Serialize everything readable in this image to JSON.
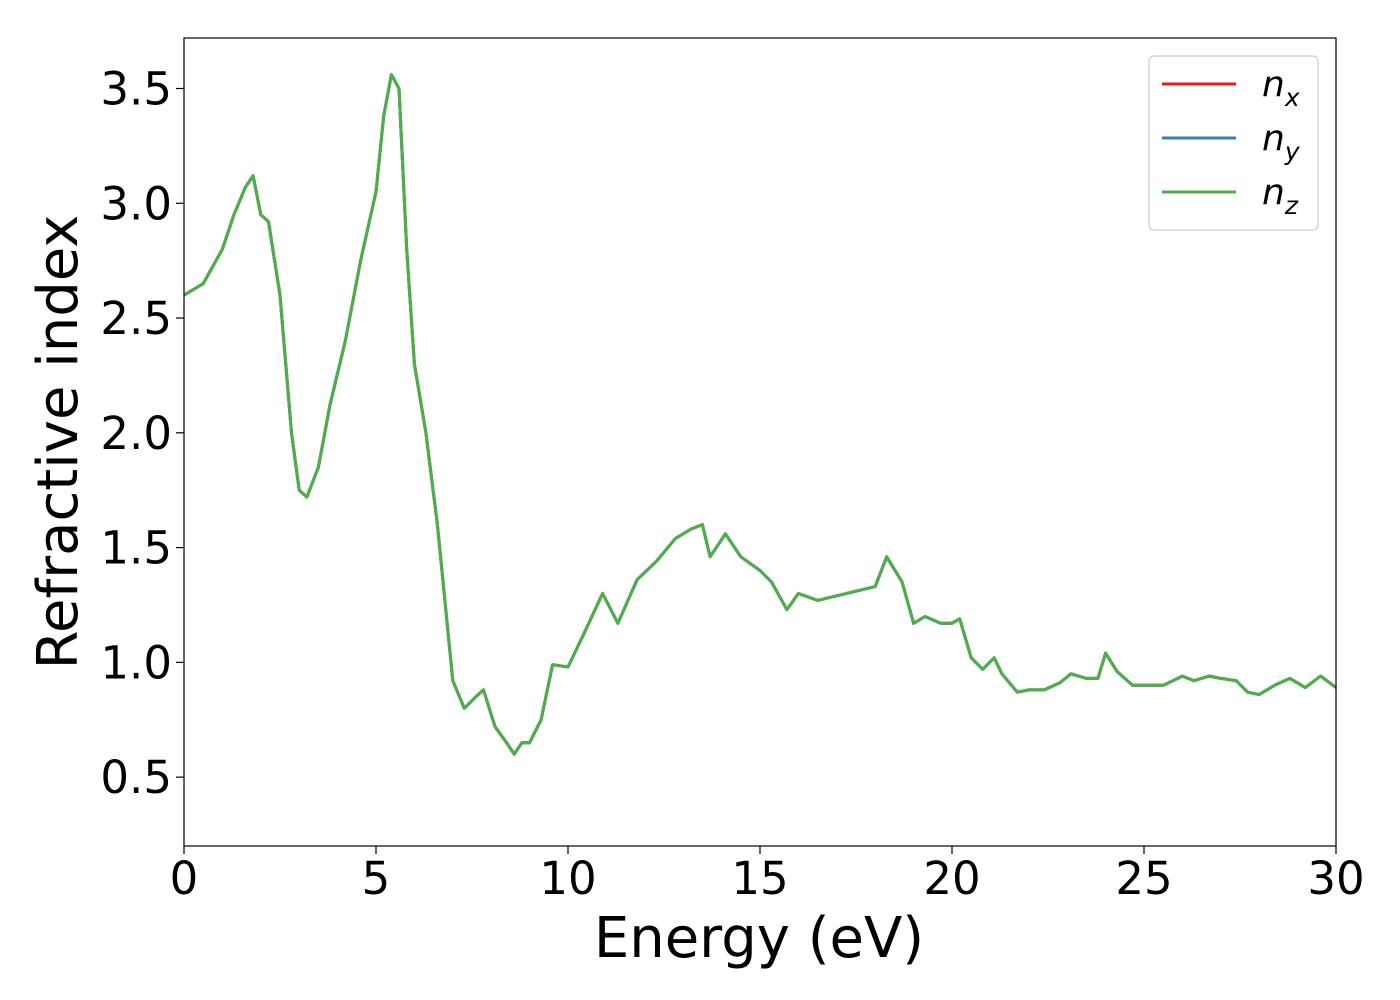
{
  "chart_data": {
    "type": "line",
    "title": "",
    "xlabel": "Energy (eV)",
    "ylabel": "Refractive index",
    "xlim": [
      0,
      30
    ],
    "ylim": [
      0.2,
      3.72
    ],
    "xticks": [
      0,
      5,
      10,
      15,
      20,
      25,
      30
    ],
    "xtick_labels": [
      "0",
      "5",
      "10",
      "15",
      "20",
      "25",
      "30"
    ],
    "yticks": [
      0.5,
      1.0,
      1.5,
      2.0,
      2.5,
      3.0,
      3.5
    ],
    "ytick_labels": [
      "0.5",
      "1.0",
      "1.5",
      "2.0",
      "2.5",
      "3.0",
      "3.5"
    ],
    "grid": false,
    "legend_position": "top-right",
    "series": [
      {
        "name": "n",
        "subscript": "x",
        "color": "#e41a1c"
      },
      {
        "name": "n",
        "subscript": "y",
        "color": "#377eb8"
      },
      {
        "name": "n",
        "subscript": "z",
        "color": "#4daf4a"
      }
    ],
    "x": [
      0,
      0.5,
      1.0,
      1.3,
      1.6,
      1.8,
      2.0,
      2.2,
      2.5,
      2.8,
      3.0,
      3.2,
      3.5,
      3.8,
      4.2,
      4.6,
      5.0,
      5.2,
      5.4,
      5.6,
      5.8,
      6.0,
      6.3,
      6.6,
      7.0,
      7.3,
      7.6,
      7.8,
      8.1,
      8.4,
      8.6,
      8.8,
      9.0,
      9.3,
      9.6,
      10.0,
      10.4,
      10.9,
      11.3,
      11.8,
      12.3,
      12.8,
      13.2,
      13.5,
      13.7,
      14.1,
      14.5,
      15.0,
      15.3,
      15.7,
      16.0,
      16.5,
      17.0,
      17.5,
      18.0,
      18.3,
      18.7,
      19.0,
      19.3,
      19.7,
      20.0,
      20.2,
      20.5,
      20.8,
      21.1,
      21.3,
      21.7,
      22.0,
      22.4,
      22.8,
      23.1,
      23.5,
      23.8,
      24.0,
      24.3,
      24.7,
      25.0,
      25.5,
      26.0,
      26.3,
      26.7,
      27.0,
      27.4,
      27.7,
      28.0,
      28.4,
      28.8,
      29.2,
      29.6,
      30.0
    ],
    "values": [
      2.6,
      2.65,
      2.8,
      2.95,
      3.07,
      3.12,
      2.95,
      2.92,
      2.6,
      2.0,
      1.75,
      1.72,
      1.85,
      2.12,
      2.4,
      2.75,
      3.05,
      3.38,
      3.56,
      3.5,
      2.8,
      2.3,
      2.0,
      1.6,
      0.92,
      0.8,
      0.85,
      0.88,
      0.72,
      0.65,
      0.6,
      0.65,
      0.65,
      0.75,
      0.99,
      0.98,
      1.12,
      1.3,
      1.17,
      1.36,
      1.44,
      1.54,
      1.58,
      1.6,
      1.46,
      1.56,
      1.46,
      1.4,
      1.35,
      1.23,
      1.3,
      1.27,
      1.29,
      1.31,
      1.33,
      1.46,
      1.35,
      1.17,
      1.2,
      1.17,
      1.17,
      1.19,
      1.02,
      0.97,
      1.02,
      0.95,
      0.87,
      0.88,
      0.88,
      0.91,
      0.95,
      0.93,
      0.93,
      1.04,
      0.96,
      0.9,
      0.9,
      0.9,
      0.94,
      0.92,
      0.94,
      0.93,
      0.92,
      0.87,
      0.86,
      0.9,
      0.93,
      0.89,
      0.94,
      0.89
    ]
  }
}
